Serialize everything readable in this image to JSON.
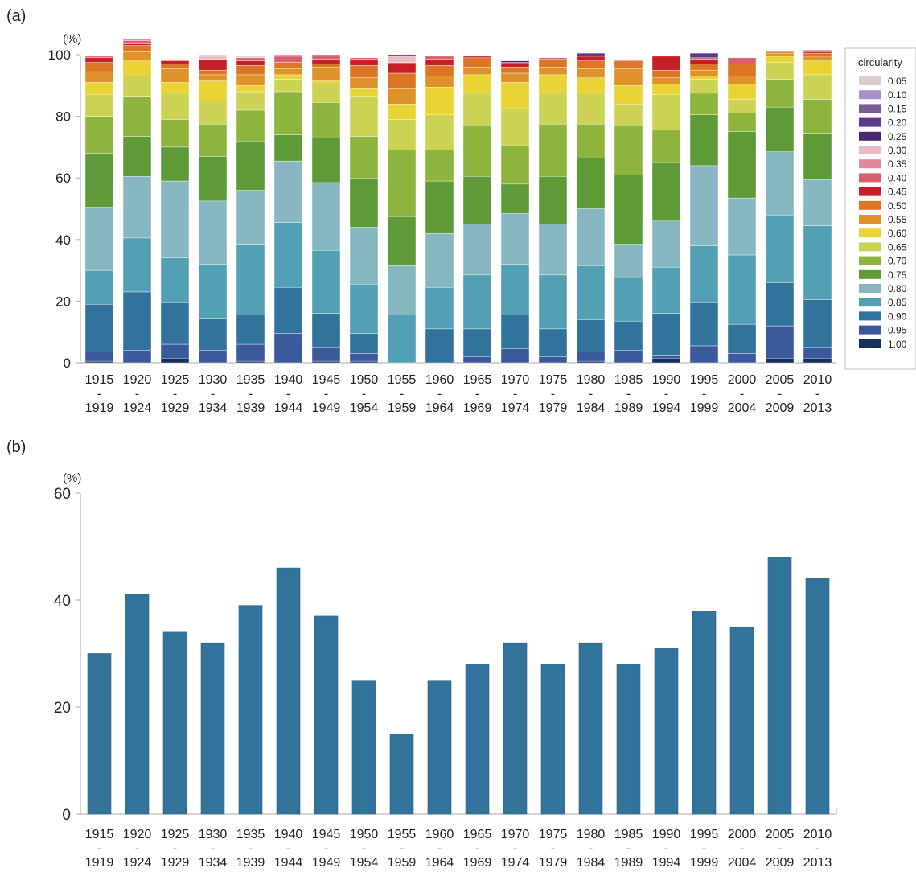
{
  "panel_a": {
    "label": "(a)",
    "unit": "(%)",
    "legend_title": "circularity"
  },
  "panel_b": {
    "label": "(b)",
    "unit": "(%)"
  },
  "chart_data": [
    {
      "type": "bar",
      "stacked": true,
      "categories": [
        [
          "1915",
          "-",
          "1919"
        ],
        [
          "1920",
          "-",
          "1924"
        ],
        [
          "1925",
          "-",
          "1929"
        ],
        [
          "1930",
          "-",
          "1934"
        ],
        [
          "1935",
          "-",
          "1939"
        ],
        [
          "1940",
          "-",
          "1944"
        ],
        [
          "1945",
          "-",
          "1949"
        ],
        [
          "1950",
          "-",
          "1954"
        ],
        [
          "1955",
          "-",
          "1959"
        ],
        [
          "1960",
          "-",
          "1964"
        ],
        [
          "1965",
          "-",
          "1969"
        ],
        [
          "1970",
          "-",
          "1974"
        ],
        [
          "1975",
          "-",
          "1979"
        ],
        [
          "1980",
          "-",
          "1984"
        ],
        [
          "1985",
          "-",
          "1989"
        ],
        [
          "1990",
          "-",
          "1994"
        ],
        [
          "1995",
          "-",
          "1999"
        ],
        [
          "2000",
          "-",
          "2004"
        ],
        [
          "2005",
          "-",
          "2009"
        ],
        [
          "2010",
          "-",
          "2013"
        ]
      ],
      "ylim": [
        0,
        100
      ],
      "yticks": [
        0,
        20,
        40,
        60,
        80,
        100
      ],
      "legend_position": "right",
      "series": [
        {
          "name": "1.00",
          "color": "#16305e",
          "values": [
            0.5,
            0,
            1.5,
            0,
            0.5,
            0,
            0.5,
            0.5,
            0,
            0,
            0,
            0,
            0,
            0.5,
            0,
            1.5,
            0,
            0,
            1.5,
            1.5
          ]
        },
        {
          "name": "0.95",
          "color": "#3a5a9c",
          "values": [
            3,
            4,
            4.5,
            4,
            5.5,
            9.5,
            4.5,
            2.5,
            0,
            0,
            2,
            4.5,
            2,
            3,
            4,
            1,
            5.5,
            3,
            10.5,
            3.5
          ]
        },
        {
          "name": "0.90",
          "color": "#32739c",
          "values": [
            15.5,
            19,
            13.5,
            10.5,
            9.5,
            15,
            11,
            6.5,
            0,
            11,
            9,
            11,
            9,
            10.5,
            9.5,
            13.5,
            14,
            9.5,
            14,
            15.5
          ]
        },
        {
          "name": "0.85",
          "color": "#51a0b4",
          "values": [
            11,
            17.5,
            14.5,
            17.5,
            23,
            21,
            20.5,
            16,
            15.5,
            13.5,
            17.5,
            16.5,
            17.5,
            17.5,
            14,
            15,
            18.5,
            22.5,
            22,
            24
          ]
        },
        {
          "name": "0.80",
          "color": "#86b7c0",
          "values": [
            20.5,
            20,
            25,
            20.5,
            17.5,
            20,
            22,
            18.5,
            16,
            17.5,
            16.5,
            16.5,
            16.5,
            18.5,
            11,
            15,
            26,
            18.5,
            20.5,
            15
          ]
        },
        {
          "name": "0.75",
          "color": "#5e9b38",
          "values": [
            17.5,
            13,
            11,
            14.5,
            16,
            8.5,
            14.5,
            16,
            16,
            17,
            15.5,
            9.5,
            15.5,
            16.5,
            22.5,
            19,
            16.5,
            21.5,
            14.5,
            15
          ]
        },
        {
          "name": "0.70",
          "color": "#8db43c",
          "values": [
            12,
            13,
            9,
            10.5,
            10,
            14,
            11.5,
            13.5,
            21.5,
            10,
            16.5,
            12.5,
            17,
            11,
            16,
            10.5,
            7,
            6,
            9,
            11
          ]
        },
        {
          "name": "0.65",
          "color": "#ccd354",
          "values": [
            7,
            6.5,
            8.5,
            7.5,
            6,
            4,
            6,
            13,
            10,
            11.5,
            10.5,
            12,
            10,
            10,
            7,
            11.5,
            4.5,
            4.5,
            5.5,
            8
          ]
        },
        {
          "name": "0.60",
          "color": "#ead335",
          "values": [
            4,
            5,
            3.5,
            6.5,
            2,
            1.5,
            1,
            2.5,
            5,
            9,
            6,
            8.5,
            6,
            5,
            6,
            3.5,
            1,
            5,
            2,
            4.5
          ]
        },
        {
          "name": "0.55",
          "color": "#e0922a",
          "values": [
            3.5,
            3,
            4.5,
            2,
            3.5,
            2,
            4.5,
            3.5,
            5,
            3.5,
            2.5,
            3,
            2.5,
            3,
            5.5,
            2,
            2,
            2.5,
            1,
            1.5
          ]
        },
        {
          "name": "0.50",
          "color": "#dc7526",
          "values": [
            3,
            2,
            1.5,
            1.5,
            3,
            2,
            1,
            4,
            5,
            3.5,
            3,
            2,
            2.5,
            2.5,
            2.5,
            2.5,
            2,
            4,
            0.5,
            1
          ]
        },
        {
          "name": "0.45",
          "color": "#c71f26",
          "values": [
            1.5,
            0.5,
            1,
            3.5,
            1.5,
            0,
            1.5,
            2,
            3,
            2,
            0.5,
            1,
            0,
            1.5,
            0,
            4.5,
            1.5,
            0,
            0,
            0.5
          ]
        },
        {
          "name": "0.40",
          "color": "#d9606f",
          "values": [
            0.5,
            1,
            0.5,
            0,
            1,
            2,
            1.5,
            0.5,
            0.5,
            1,
            0,
            0.5,
            0.5,
            0,
            0.5,
            0,
            0.5,
            2,
            0,
            0.5
          ]
        },
        {
          "name": "0.35",
          "color": "#e0899a",
          "values": [
            0,
            0.5,
            0,
            0,
            0,
            0.5,
            0,
            0,
            0,
            0,
            0,
            0,
            0,
            0,
            0,
            0,
            0,
            0,
            0,
            0
          ]
        },
        {
          "name": "0.30",
          "color": "#ebbac4",
          "values": [
            0,
            0,
            0,
            1,
            0,
            0,
            0,
            0,
            2,
            0,
            0,
            0,
            0,
            0,
            0,
            0,
            0,
            0,
            0,
            0
          ]
        },
        {
          "name": "0.25",
          "color": "#4b2670",
          "values": [
            0,
            0,
            0,
            0,
            0,
            0,
            0,
            0,
            0.5,
            0,
            0,
            0.5,
            0,
            0,
            0,
            0,
            0,
            0,
            0,
            0
          ]
        },
        {
          "name": "0.20",
          "color": "#5b3b8c",
          "values": [
            0,
            0,
            0,
            0,
            0,
            0,
            0,
            0,
            0,
            0,
            0,
            0,
            0,
            1,
            0,
            0,
            1.5,
            0,
            0,
            0
          ]
        },
        {
          "name": "0.15",
          "color": "#7a5a98",
          "values": [
            0,
            0,
            0,
            0,
            0,
            0,
            0,
            0,
            0,
            0,
            0,
            0,
            0,
            0,
            0,
            0,
            0,
            0,
            0,
            0
          ]
        },
        {
          "name": "0.10",
          "color": "#a890c8",
          "values": [
            0,
            0,
            0,
            0,
            0,
            0,
            0,
            0,
            0,
            0,
            0,
            0,
            0,
            0,
            0,
            0,
            0,
            0,
            0,
            0
          ]
        },
        {
          "name": "0.05",
          "color": "#dccbcf",
          "values": [
            0,
            0,
            0,
            0.5,
            0.5,
            0,
            0,
            0,
            0,
            0,
            0,
            0,
            0,
            0,
            0,
            0,
            0,
            0,
            0,
            0
          ]
        }
      ]
    },
    {
      "type": "bar",
      "categories": [
        [
          "1915",
          "-",
          "1919"
        ],
        [
          "1920",
          "-",
          "1924"
        ],
        [
          "1925",
          "-",
          "1929"
        ],
        [
          "1930",
          "-",
          "1934"
        ],
        [
          "1935",
          "-",
          "1939"
        ],
        [
          "1940",
          "-",
          "1944"
        ],
        [
          "1945",
          "-",
          "1949"
        ],
        [
          "1950",
          "-",
          "1954"
        ],
        [
          "1955",
          "-",
          "1959"
        ],
        [
          "1960",
          "-",
          "1964"
        ],
        [
          "1965",
          "-",
          "1969"
        ],
        [
          "1970",
          "-",
          "1974"
        ],
        [
          "1975",
          "-",
          "1979"
        ],
        [
          "1980",
          "-",
          "1984"
        ],
        [
          "1985",
          "-",
          "1989"
        ],
        [
          "1990",
          "-",
          "1994"
        ],
        [
          "1995",
          "-",
          "1999"
        ],
        [
          "2000",
          "-",
          "2004"
        ],
        [
          "2005",
          "-",
          "2009"
        ],
        [
          "2010",
          "-",
          "2013"
        ]
      ],
      "values": [
        30,
        41,
        34,
        32,
        39,
        46,
        37,
        25,
        15,
        25,
        28,
        32,
        28,
        32,
        28,
        31,
        38,
        35,
        48,
        44
      ],
      "color": "#32739c",
      "ylim": [
        0,
        60
      ],
      "yticks": [
        0,
        20,
        40,
        60
      ]
    }
  ]
}
